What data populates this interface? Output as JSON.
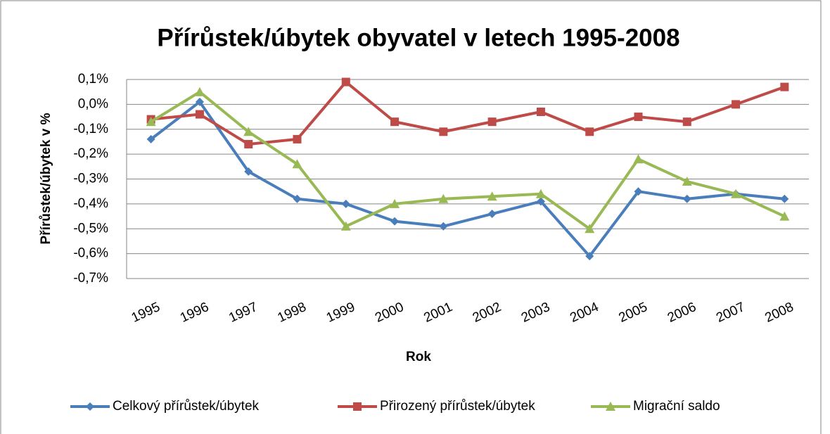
{
  "chart_data": {
    "type": "line",
    "title": "Přírůstek/úbytek obyvatel v letech 1995-2008",
    "x_label": "Rok",
    "y_label": "Přírůstek/úbytek v %",
    "categories": [
      "1995",
      "1996",
      "1997",
      "1998",
      "1999",
      "2000",
      "2001",
      "2002",
      "2003",
      "2004",
      "2005",
      "2006",
      "2007",
      "2008"
    ],
    "series": [
      {
        "name": "Celkový přírůstek/úbytek",
        "color": "#4a7ebb",
        "marker": "diamond",
        "values": [
          -0.14,
          0.01,
          -0.27,
          -0.38,
          -0.4,
          -0.47,
          -0.49,
          -0.44,
          -0.39,
          -0.61,
          -0.35,
          -0.38,
          -0.36,
          -0.38
        ]
      },
      {
        "name": "Přirozený přírůstek/úbytek",
        "color": "#be4b48",
        "marker": "square",
        "values": [
          -0.06,
          -0.04,
          -0.16,
          -0.14,
          0.09,
          -0.07,
          -0.11,
          -0.07,
          -0.03,
          -0.11,
          -0.05,
          -0.07,
          0.0,
          0.07
        ]
      },
      {
        "name": "Migrační saldo",
        "color": "#98b954",
        "marker": "triangle",
        "values": [
          -0.07,
          0.05,
          -0.11,
          -0.24,
          -0.49,
          -0.4,
          -0.38,
          -0.37,
          -0.36,
          -0.5,
          -0.22,
          -0.31,
          -0.36,
          -0.45
        ]
      }
    ],
    "ylim": [
      -0.7,
      0.1
    ],
    "yticks": [
      {
        "value": -0.7,
        "label": "-0,7%"
      },
      {
        "value": -0.6,
        "label": "-0,6%"
      },
      {
        "value": -0.5,
        "label": "-0,5%"
      },
      {
        "value": -0.4,
        "label": "-0,4%"
      },
      {
        "value": -0.3,
        "label": "-0,3%"
      },
      {
        "value": -0.2,
        "label": "-0,2%"
      },
      {
        "value": -0.1,
        "label": "-0,1%"
      },
      {
        "value": 0,
        "label": "0,0%"
      },
      {
        "value": 0.1,
        "label": "0,1%"
      }
    ],
    "grid": true,
    "legend": "bottom"
  }
}
